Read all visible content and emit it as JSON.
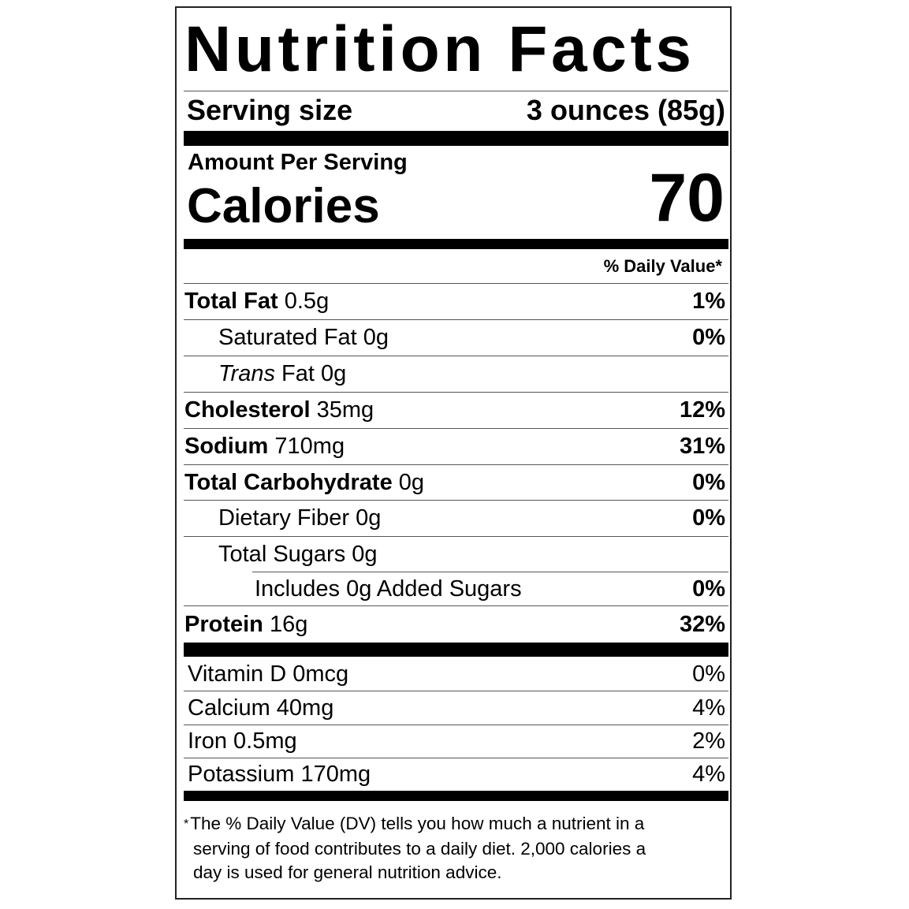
{
  "title": "Nutrition Facts",
  "serving": {
    "label": "Serving size",
    "value": "3 ounces (85g)"
  },
  "amount_per_serving": "Amount Per Serving",
  "calories": {
    "label": "Calories",
    "value": "70"
  },
  "daily_value_header": "% Daily Value*",
  "nutrients": [
    {
      "name": "Total Fat",
      "amount": "0.5g",
      "dv": "1%",
      "bold": true,
      "indent": 0
    },
    {
      "name": "Saturated Fat",
      "amount": "0g",
      "dv": "0%",
      "bold": false,
      "indent": 1
    },
    {
      "name": "Trans",
      "name_suffix": "Fat",
      "amount": "0g",
      "dv": "",
      "bold": false,
      "indent": 1,
      "italic": true
    },
    {
      "name": "Cholesterol",
      "amount": "35mg",
      "dv": "12%",
      "bold": true,
      "indent": 0
    },
    {
      "name": "Sodium",
      "amount": "710mg",
      "dv": "31%",
      "bold": true,
      "indent": 0
    },
    {
      "name": "Total Carbohydrate",
      "amount": "0g",
      "dv": "0%",
      "bold": true,
      "indent": 0
    },
    {
      "name": "Dietary Fiber",
      "amount": "0g",
      "dv": "0%",
      "bold": false,
      "indent": 1
    },
    {
      "name": "Total Sugars",
      "amount": "0g",
      "dv": "",
      "bold": false,
      "indent": 1
    },
    {
      "name": "Includes 0g Added Sugars",
      "amount": "",
      "dv": "0%",
      "bold": false,
      "indent": 2
    },
    {
      "name": "Protein",
      "amount": "16g",
      "dv": "32%",
      "bold": true,
      "indent": 0
    }
  ],
  "vitamins": [
    {
      "name": "Vitamin D 0mcg",
      "dv": "0%"
    },
    {
      "name": "Calcium 40mg",
      "dv": "4%"
    },
    {
      "name": "Iron 0.5mg",
      "dv": "2%"
    },
    {
      "name": "Potassium 170mg",
      "dv": "4%"
    }
  ],
  "footnote": {
    "asterisk": "*",
    "lines": [
      "The % Daily Value (DV) tells you how much a nutrient in a",
      "serving of food contributes to a daily diet. 2,000 calories a",
      "day is used for general nutrition advice."
    ]
  }
}
